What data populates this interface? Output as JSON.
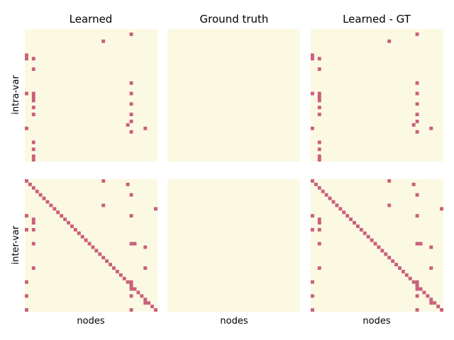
{
  "figure": {
    "column_titles": [
      "Learned",
      "Ground truth",
      "Learned - GT"
    ],
    "row_labels": [
      "intra-var",
      "inter-var"
    ],
    "xlabel": "nodes"
  },
  "colors": {
    "background": "#fcf9e3",
    "cell": "#c9607b"
  },
  "chart_data": {
    "type": "heatmap",
    "grid_size": 38,
    "note_cells": "cells are [row, col] indices of nonzero entries; all other cells are zero",
    "panels": [
      {
        "row": "intra-var",
        "column": "Learned",
        "cells": [
          [
            1,
            30
          ],
          [
            3,
            22
          ],
          [
            7,
            0
          ],
          [
            8,
            0
          ],
          [
            8,
            2
          ],
          [
            11,
            2
          ],
          [
            15,
            30
          ],
          [
            18,
            0
          ],
          [
            18,
            2
          ],
          [
            19,
            2
          ],
          [
            20,
            2
          ],
          [
            18,
            30
          ],
          [
            21,
            30
          ],
          [
            22,
            2
          ],
          [
            24,
            2
          ],
          [
            24,
            30
          ],
          [
            26,
            30
          ],
          [
            27,
            29
          ],
          [
            28,
            0
          ],
          [
            28,
            34
          ],
          [
            29,
            30
          ],
          [
            32,
            2
          ],
          [
            34,
            2
          ],
          [
            36,
            2
          ],
          [
            37,
            2
          ]
        ]
      },
      {
        "row": "intra-var",
        "column": "Ground truth",
        "cells": []
      },
      {
        "row": "intra-var",
        "column": "Learned - GT",
        "cells": [
          [
            1,
            30
          ],
          [
            3,
            22
          ],
          [
            7,
            0
          ],
          [
            8,
            0
          ],
          [
            8,
            2
          ],
          [
            11,
            2
          ],
          [
            15,
            30
          ],
          [
            18,
            0
          ],
          [
            18,
            2
          ],
          [
            19,
            2
          ],
          [
            20,
            2
          ],
          [
            18,
            30
          ],
          [
            21,
            30
          ],
          [
            22,
            2
          ],
          [
            24,
            2
          ],
          [
            24,
            30
          ],
          [
            26,
            30
          ],
          [
            27,
            29
          ],
          [
            28,
            0
          ],
          [
            28,
            34
          ],
          [
            29,
            30
          ],
          [
            32,
            2
          ],
          [
            34,
            2
          ],
          [
            36,
            2
          ],
          [
            37,
            2
          ]
        ]
      },
      {
        "row": "inter-var",
        "column": "Learned",
        "diagonal": true,
        "cells": [
          [
            0,
            22
          ],
          [
            1,
            29
          ],
          [
            4,
            30
          ],
          [
            7,
            22
          ],
          [
            8,
            37
          ],
          [
            10,
            0
          ],
          [
            10,
            30
          ],
          [
            11,
            2
          ],
          [
            12,
            2
          ],
          [
            14,
            0
          ],
          [
            14,
            2
          ],
          [
            18,
            2
          ],
          [
            18,
            30
          ],
          [
            18,
            31
          ],
          [
            19,
            34
          ],
          [
            25,
            2
          ],
          [
            25,
            34
          ],
          [
            29,
            0
          ],
          [
            29,
            30
          ],
          [
            30,
            30
          ],
          [
            31,
            30
          ],
          [
            33,
            0
          ],
          [
            33,
            30
          ],
          [
            35,
            34
          ],
          [
            37,
            0
          ],
          [
            37,
            30
          ]
        ]
      },
      {
        "row": "inter-var",
        "column": "Ground truth",
        "cells": []
      },
      {
        "row": "inter-var",
        "column": "Learned - GT",
        "diagonal": true,
        "cells": [
          [
            0,
            22
          ],
          [
            1,
            29
          ],
          [
            4,
            30
          ],
          [
            7,
            22
          ],
          [
            8,
            37
          ],
          [
            10,
            0
          ],
          [
            10,
            30
          ],
          [
            11,
            2
          ],
          [
            12,
            2
          ],
          [
            14,
            0
          ],
          [
            14,
            2
          ],
          [
            18,
            2
          ],
          [
            18,
            30
          ],
          [
            18,
            31
          ],
          [
            19,
            34
          ],
          [
            25,
            2
          ],
          [
            25,
            34
          ],
          [
            29,
            0
          ],
          [
            29,
            30
          ],
          [
            30,
            30
          ],
          [
            31,
            30
          ],
          [
            33,
            0
          ],
          [
            33,
            30
          ],
          [
            35,
            34
          ],
          [
            37,
            0
          ],
          [
            37,
            30
          ]
        ]
      }
    ]
  }
}
